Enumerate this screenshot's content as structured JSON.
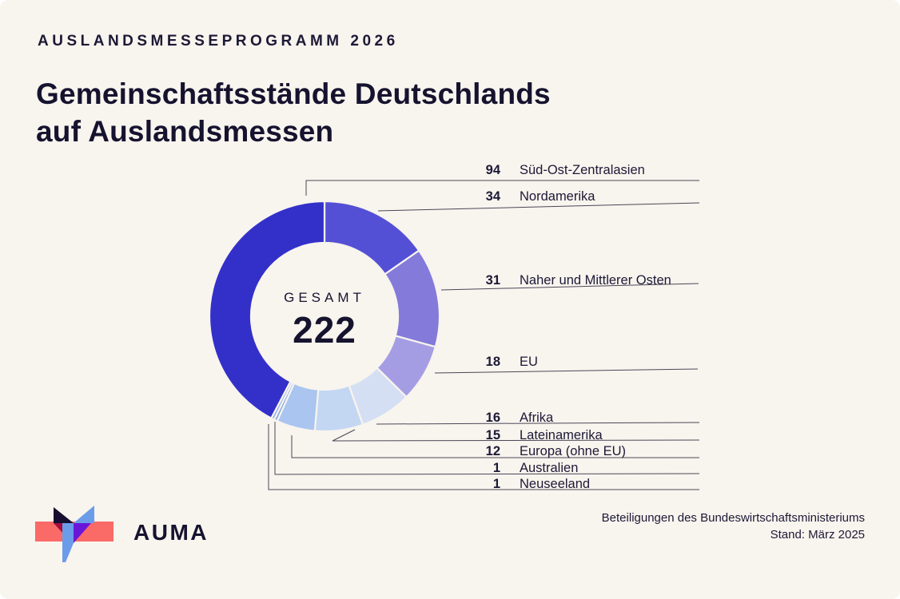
{
  "header": {
    "eyebrow": "AUSLANDSMESSEPROGRAMM 2026",
    "title_line1": "Gemeinschaftsstände Deutschlands",
    "title_line2": "auf Auslandsmessen"
  },
  "chart_data": {
    "type": "pie",
    "variant": "donut",
    "title": "Gemeinschaftsstände Deutschlands auf Auslandsmessen",
    "center_label": "GESAMT",
    "total": 222,
    "legend_position": "right",
    "segments": [
      {
        "label": "Süd-Ost-Zentralasien",
        "value": 94,
        "color": "#3330c9"
      },
      {
        "label": "Nordamerika",
        "value": 34,
        "color": "#5450d5"
      },
      {
        "label": "Naher und Mittlerer Osten",
        "value": 31,
        "color": "#837ada"
      },
      {
        "label": "EU",
        "value": 18,
        "color": "#a59de4"
      },
      {
        "label": "Afrika",
        "value": 16,
        "color": "#d5dff4"
      },
      {
        "label": "Lateinamerika",
        "value": 15,
        "color": "#c3d7f3"
      },
      {
        "label": "Europa (ohne EU)",
        "value": 12,
        "color": "#a9c5f0"
      },
      {
        "label": "Australien",
        "value": 1,
        "color": "#7fa5e7"
      },
      {
        "label": "Neuseeland",
        "value": 1,
        "color": "#93b4ec"
      }
    ],
    "draw_order_clockwise_from_top": [
      "Nordamerika",
      "Naher und Mittlerer Osten",
      "EU",
      "Afrika",
      "Lateinamerika",
      "Europa (ohne EU)",
      "Australien",
      "Neuseeland",
      "Süd-Ost-Zentralasien"
    ]
  },
  "footer": {
    "logo_text": "AUMA",
    "source_line1": "Beteiligungen des Bundeswirtschaftsministeriums",
    "source_line2": "Stand: März 2025"
  },
  "colors": {
    "background": "#f8f4ee",
    "text": "#1c1936",
    "leader_line": "#4b4757",
    "logo_coral": "#fa6a66",
    "logo_black": "#170f2f",
    "logo_maroon": "#a50d3c",
    "logo_blue": "#6b9ce9",
    "logo_purple": "#6a16d9"
  }
}
